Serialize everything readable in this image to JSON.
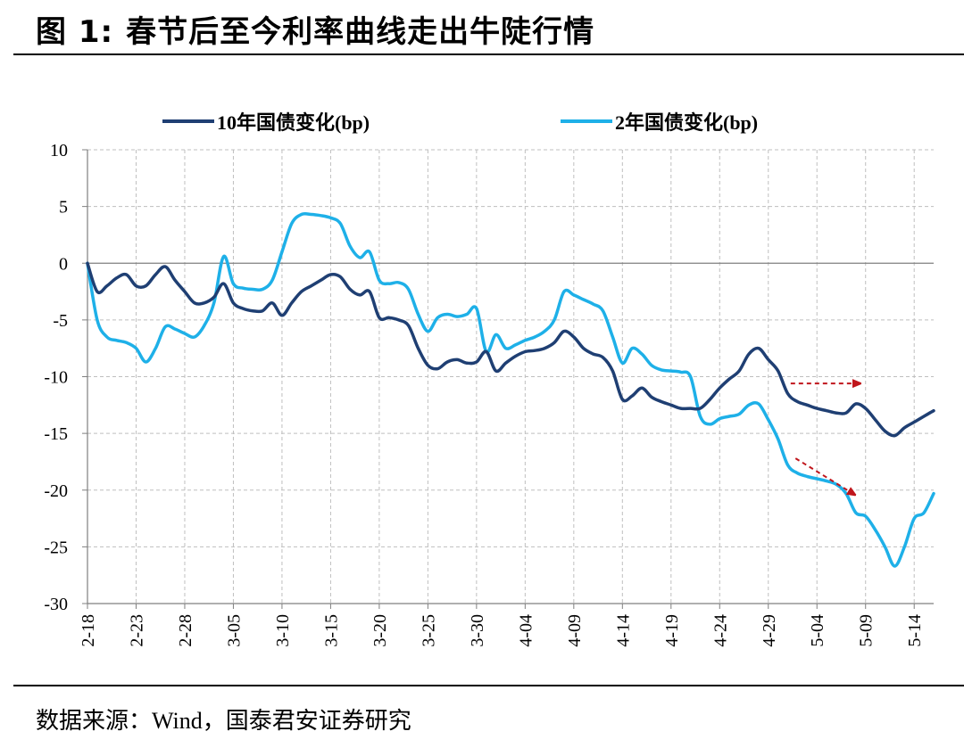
{
  "figure": {
    "label": "图 1:",
    "title": "春节后至今利率曲线走出牛陡行情",
    "source_label": "数据来源：",
    "source_value": "Wind，国泰君安证券研究"
  },
  "colors": {
    "series_10y": "#1F3F73",
    "series_2y": "#1EB0E8",
    "arrow": "#C0161C",
    "grid": "#BFBFBF"
  },
  "chart_data": {
    "type": "line",
    "title": "",
    "xlabel": "",
    "ylabel": "",
    "ylim": [
      -30,
      10
    ],
    "yticks": [
      10,
      5,
      0,
      -5,
      -10,
      -15,
      -20,
      -25,
      -30
    ],
    "x_tick_labels": [
      "2-18",
      "2-23",
      "2-28",
      "3-05",
      "3-10",
      "3-15",
      "3-20",
      "3-25",
      "3-30",
      "4-04",
      "4-09",
      "4-14",
      "4-19",
      "4-24",
      "4-29",
      "5-04",
      "5-09",
      "5-14"
    ],
    "x_range": [
      0,
      87
    ],
    "grid": true,
    "legend_position": "top",
    "series": [
      {
        "name": "10年国债变化(bp)",
        "color": "#1F3F73",
        "points": [
          [
            0,
            0
          ],
          [
            1,
            -2.5
          ],
          [
            2,
            -2
          ],
          [
            3,
            -1.3
          ],
          [
            4,
            -1
          ],
          [
            5,
            -2
          ],
          [
            6,
            -2
          ],
          [
            7,
            -1
          ],
          [
            8,
            -0.3
          ],
          [
            9,
            -1.5
          ],
          [
            10,
            -2.5
          ],
          [
            11,
            -3.5
          ],
          [
            12,
            -3.5
          ],
          [
            13,
            -3
          ],
          [
            14,
            -1.8
          ],
          [
            15,
            -3.5
          ],
          [
            16,
            -4
          ],
          [
            17,
            -4.2
          ],
          [
            18,
            -4.2
          ],
          [
            19,
            -3.5
          ],
          [
            20,
            -4.6
          ],
          [
            21,
            -3.5
          ],
          [
            22,
            -2.5
          ],
          [
            23,
            -2
          ],
          [
            24,
            -1.5
          ],
          [
            25,
            -1
          ],
          [
            26,
            -1.2
          ],
          [
            27,
            -2.3
          ],
          [
            28,
            -2.8
          ],
          [
            29,
            -2.5
          ],
          [
            30,
            -4.8
          ],
          [
            31,
            -4.8
          ],
          [
            32,
            -5
          ],
          [
            33,
            -5.5
          ],
          [
            34,
            -7.5
          ],
          [
            35,
            -9
          ],
          [
            36,
            -9.3
          ],
          [
            37,
            -8.7
          ],
          [
            38,
            -8.5
          ],
          [
            39,
            -8.8
          ],
          [
            40,
            -8.7
          ],
          [
            41,
            -7.8
          ],
          [
            42,
            -9.5
          ],
          [
            43,
            -8.8
          ],
          [
            44,
            -8.2
          ],
          [
            45,
            -7.8
          ],
          [
            46,
            -7.7
          ],
          [
            47,
            -7.5
          ],
          [
            48,
            -7
          ],
          [
            49,
            -6
          ],
          [
            50,
            -6.5
          ],
          [
            51,
            -7.5
          ],
          [
            52,
            -8
          ],
          [
            53,
            -8.3
          ],
          [
            54,
            -9.5
          ],
          [
            55,
            -12
          ],
          [
            56,
            -11.7
          ],
          [
            57,
            -11
          ],
          [
            58,
            -11.8
          ],
          [
            59,
            -12.2
          ],
          [
            60,
            -12.5
          ],
          [
            61,
            -12.8
          ],
          [
            62,
            -12.8
          ],
          [
            63,
            -12.8
          ],
          [
            64,
            -12
          ],
          [
            65,
            -11
          ],
          [
            66,
            -10.2
          ],
          [
            67,
            -9.5
          ],
          [
            68,
            -8
          ],
          [
            69,
            -7.5
          ],
          [
            70,
            -8.5
          ],
          [
            71,
            -9.5
          ],
          [
            72,
            -11.5
          ],
          [
            73,
            -12.2
          ],
          [
            74,
            -12.5
          ],
          [
            75,
            -12.8
          ],
          [
            76,
            -13
          ],
          [
            77,
            -13.2
          ],
          [
            78,
            -13.2
          ],
          [
            79,
            -12.4
          ],
          [
            80,
            -12.8
          ],
          [
            81,
            -13.8
          ],
          [
            82,
            -14.8
          ],
          [
            83,
            -15.2
          ],
          [
            84,
            -14.5
          ],
          [
            85,
            -14
          ],
          [
            86,
            -13.5
          ],
          [
            87,
            -13
          ]
        ]
      },
      {
        "name": "2年国债变化(bp)",
        "color": "#1EB0E8",
        "points": [
          [
            0,
            0
          ],
          [
            1,
            -5
          ],
          [
            2,
            -6.5
          ],
          [
            3,
            -6.8
          ],
          [
            4,
            -7
          ],
          [
            5,
            -7.5
          ],
          [
            6,
            -8.7
          ],
          [
            7,
            -7.5
          ],
          [
            8,
            -5.6
          ],
          [
            9,
            -5.8
          ],
          [
            10,
            -6.2
          ],
          [
            11,
            -6.5
          ],
          [
            12,
            -5.5
          ],
          [
            13,
            -3.5
          ],
          [
            14,
            0.6
          ],
          [
            15,
            -1.8
          ],
          [
            16,
            -2.2
          ],
          [
            17,
            -2.3
          ],
          [
            18,
            -2.3
          ],
          [
            19,
            -1.5
          ],
          [
            20,
            1
          ],
          [
            21,
            3.5
          ],
          [
            22,
            4.3
          ],
          [
            23,
            4.3
          ],
          [
            24,
            4.2
          ],
          [
            25,
            4
          ],
          [
            26,
            3.5
          ],
          [
            27,
            1.5
          ],
          [
            28,
            0.5
          ],
          [
            29,
            1
          ],
          [
            30,
            -1.5
          ],
          [
            31,
            -1.8
          ],
          [
            32,
            -1.7
          ],
          [
            33,
            -2.3
          ],
          [
            34,
            -4.5
          ],
          [
            35,
            -6
          ],
          [
            36,
            -4.8
          ],
          [
            37,
            -4.5
          ],
          [
            38,
            -4.7
          ],
          [
            39,
            -4.5
          ],
          [
            40,
            -4
          ],
          [
            41,
            -7.8
          ],
          [
            42,
            -6.3
          ],
          [
            43,
            -7.5
          ],
          [
            44,
            -7.2
          ],
          [
            45,
            -6.8
          ],
          [
            46,
            -6.5
          ],
          [
            47,
            -6
          ],
          [
            48,
            -5
          ],
          [
            49,
            -2.5
          ],
          [
            50,
            -2.8
          ],
          [
            51,
            -3.2
          ],
          [
            52,
            -3.6
          ],
          [
            53,
            -4.2
          ],
          [
            54,
            -6.5
          ],
          [
            55,
            -8.8
          ],
          [
            56,
            -7.5
          ],
          [
            57,
            -8
          ],
          [
            58,
            -9
          ],
          [
            59,
            -9.4
          ],
          [
            60,
            -9.5
          ],
          [
            61,
            -9.6
          ],
          [
            62,
            -10
          ],
          [
            63,
            -13.5
          ],
          [
            64,
            -14.2
          ],
          [
            65,
            -13.7
          ],
          [
            66,
            -13.5
          ],
          [
            67,
            -13.3
          ],
          [
            68,
            -12.5
          ],
          [
            69,
            -12.4
          ],
          [
            70,
            -13.8
          ],
          [
            71,
            -15.5
          ],
          [
            72,
            -17.8
          ],
          [
            73,
            -18.5
          ],
          [
            74,
            -18.8
          ],
          [
            75,
            -19
          ],
          [
            76,
            -19.2
          ],
          [
            77,
            -19.5
          ],
          [
            78,
            -20.3
          ],
          [
            79,
            -22
          ],
          [
            80,
            -22.3
          ],
          [
            81,
            -23.5
          ],
          [
            82,
            -25
          ],
          [
            83,
            -26.7
          ],
          [
            84,
            -25
          ],
          [
            85,
            -22.5
          ],
          [
            86,
            -22
          ],
          [
            87,
            -20.3
          ]
        ]
      }
    ]
  }
}
